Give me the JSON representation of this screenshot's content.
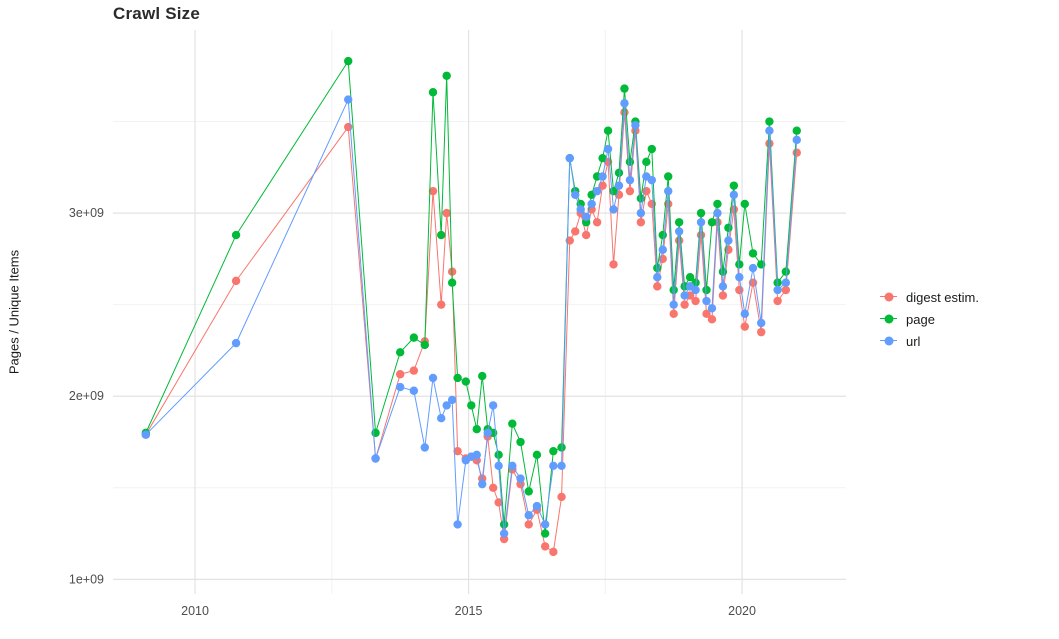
{
  "chart_data": {
    "type": "line",
    "title": "Crawl Size",
    "xlabel": "",
    "ylabel": "Pages / Unique Items",
    "y_unit_multiplier": 1000000000.0,
    "grid": true,
    "legend_position": "right",
    "x_domain": [
      2008.5,
      2021.9
    ],
    "y_domain": [
      0.92,
      4.0
    ],
    "x_ticks": [
      {
        "label": "2010",
        "value": 2010
      },
      {
        "label": "2015",
        "value": 2015
      },
      {
        "label": "2020",
        "value": 2020
      }
    ],
    "y_ticks": [
      {
        "label": "1e+09",
        "value": 1
      },
      {
        "label": "2e+09",
        "value": 2
      },
      {
        "label": "3e+09",
        "value": 3
      }
    ],
    "x_minor": [
      2012.5,
      2017.5
    ],
    "y_minor": [
      1.5,
      2.5,
      3.5
    ],
    "x": [
      2009.1,
      2010.75,
      2012.8,
      2013.3,
      2013.75,
      2014.0,
      2014.2,
      2014.35,
      2014.5,
      2014.6,
      2014.7,
      2014.8,
      2014.95,
      2015.05,
      2015.15,
      2015.25,
      2015.35,
      2015.45,
      2015.55,
      2015.65,
      2015.8,
      2015.95,
      2016.1,
      2016.25,
      2016.4,
      2016.55,
      2016.7,
      2016.85,
      2016.95,
      2017.05,
      2017.15,
      2017.25,
      2017.35,
      2017.45,
      2017.55,
      2017.65,
      2017.75,
      2017.85,
      2017.95,
      2018.05,
      2018.15,
      2018.25,
      2018.35,
      2018.45,
      2018.55,
      2018.65,
      2018.75,
      2018.85,
      2018.95,
      2019.05,
      2019.15,
      2019.25,
      2019.35,
      2019.45,
      2019.55,
      2019.65,
      2019.75,
      2019.85,
      2019.95,
      2020.05,
      2020.2,
      2020.35,
      2020.5,
      2020.65,
      2020.8,
      2021.0
    ],
    "series": [
      {
        "name": "digest estim.",
        "color": "#F8766D",
        "values": [
          1.79,
          2.63,
          3.47,
          1.66,
          2.12,
          2.14,
          2.3,
          3.12,
          2.5,
          3.0,
          2.68,
          1.7,
          1.66,
          1.67,
          1.65,
          1.55,
          1.78,
          1.5,
          1.42,
          1.22,
          1.6,
          1.52,
          1.3,
          1.38,
          1.18,
          1.15,
          1.45,
          2.85,
          2.9,
          3.0,
          2.88,
          3.02,
          2.95,
          3.15,
          3.28,
          2.72,
          3.1,
          3.55,
          3.12,
          3.45,
          2.95,
          3.12,
          3.05,
          2.6,
          2.75,
          3.05,
          2.45,
          2.85,
          2.5,
          2.55,
          2.52,
          2.88,
          2.45,
          2.42,
          2.95,
          2.55,
          2.8,
          3.02,
          2.58,
          2.38,
          2.62,
          2.35,
          3.38,
          2.52,
          2.58,
          3.33
        ]
      },
      {
        "name": "page",
        "color": "#00BA38",
        "values": [
          1.8,
          2.88,
          3.83,
          1.8,
          2.24,
          2.32,
          2.28,
          3.66,
          2.88,
          3.75,
          2.62,
          2.1,
          2.08,
          1.95,
          1.82,
          2.11,
          1.82,
          1.8,
          1.68,
          1.3,
          1.85,
          1.75,
          1.48,
          1.68,
          1.25,
          1.7,
          1.72,
          3.3,
          3.12,
          3.05,
          2.95,
          3.1,
          3.2,
          3.3,
          3.45,
          3.12,
          3.22,
          3.68,
          3.28,
          3.5,
          3.08,
          3.28,
          3.35,
          2.7,
          2.88,
          3.2,
          2.58,
          2.95,
          2.6,
          2.65,
          2.62,
          3.0,
          2.58,
          2.95,
          3.05,
          2.68,
          2.92,
          3.15,
          2.72,
          3.05,
          2.78,
          2.72,
          3.5,
          2.62,
          2.68,
          3.45
        ]
      },
      {
        "name": "url",
        "color": "#619CFF",
        "values": [
          1.79,
          2.29,
          3.62,
          1.66,
          2.05,
          2.03,
          1.72,
          2.1,
          1.88,
          1.95,
          1.98,
          1.3,
          1.65,
          1.67,
          1.68,
          1.52,
          1.8,
          1.95,
          1.62,
          1.25,
          1.62,
          1.55,
          1.35,
          1.4,
          1.3,
          1.62,
          1.62,
          3.3,
          3.1,
          3.02,
          2.98,
          3.05,
          3.12,
          3.2,
          3.35,
          3.02,
          3.15,
          3.6,
          3.18,
          3.48,
          3.0,
          3.2,
          3.18,
          2.65,
          2.8,
          3.12,
          2.5,
          2.9,
          2.55,
          2.6,
          2.58,
          2.95,
          2.52,
          2.48,
          3.0,
          2.6,
          2.85,
          3.1,
          2.65,
          2.45,
          2.7,
          2.4,
          3.45,
          2.58,
          2.62,
          3.4
        ]
      }
    ]
  }
}
